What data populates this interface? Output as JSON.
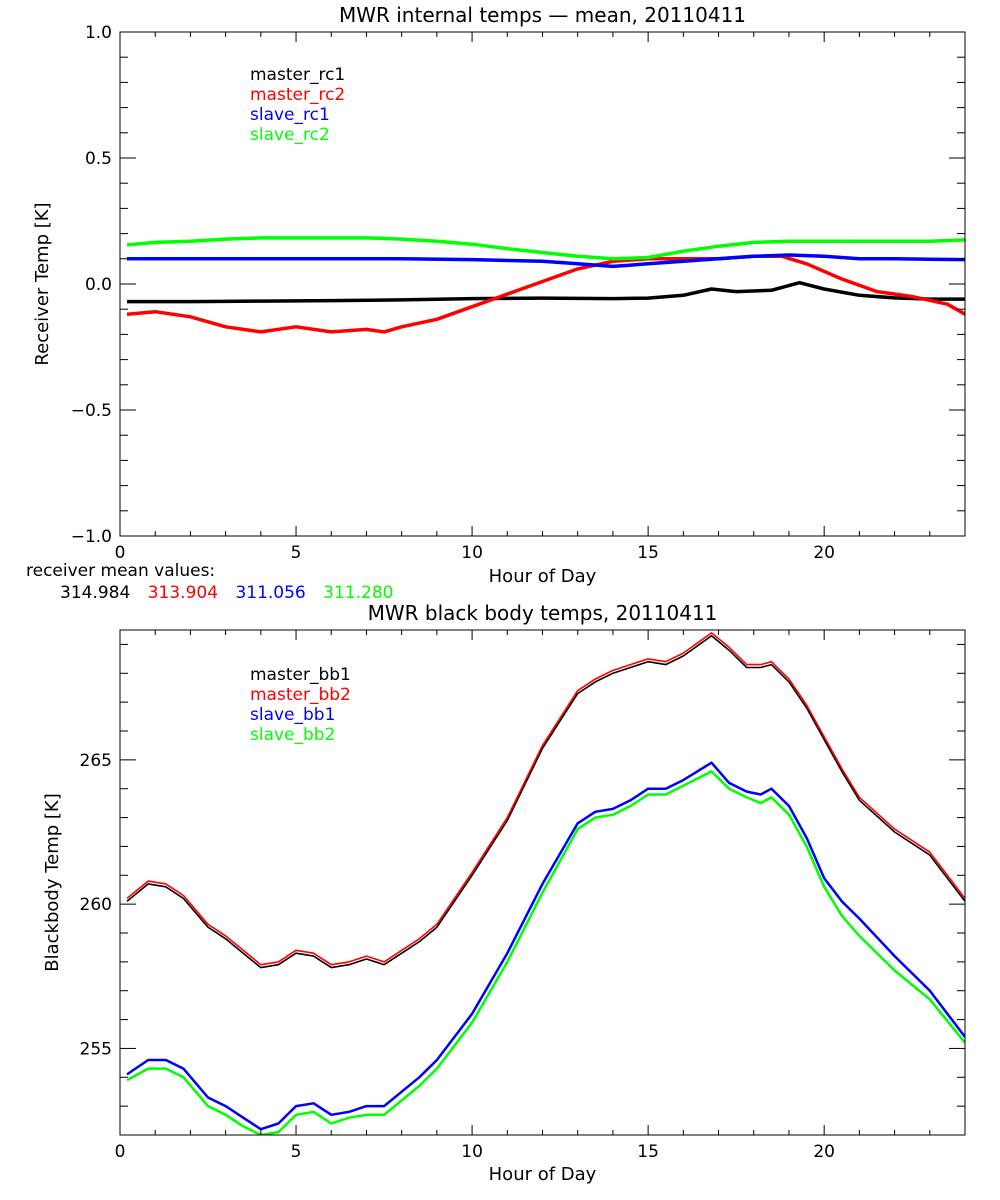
{
  "chart_data": [
    {
      "type": "line",
      "title": "MWR internal temps — mean, 20110411",
      "xlabel": "Hour of Day",
      "ylabel": "Receiver Temp [K]",
      "xlim": [
        0,
        24
      ],
      "ylim": [
        -1.0,
        1.0
      ],
      "xticks": [
        0,
        5,
        10,
        15,
        20
      ],
      "yticks": [
        -1.0,
        -0.5,
        0.0,
        0.5,
        1.0
      ],
      "ytick_labels": [
        "−1.0",
        "−0.5",
        "0.0",
        "0.5",
        "1.0"
      ],
      "grid": false,
      "legend": "upper-left",
      "series": [
        {
          "name": "master_rc1",
          "color": "#000000",
          "x": [
            0.2,
            2,
            4,
            6,
            8,
            10,
            12,
            14,
            15,
            16,
            16.8,
            17.5,
            18.5,
            19.3,
            20,
            21,
            22,
            23,
            24
          ],
          "y": [
            -0.07,
            -0.07,
            -0.068,
            -0.066,
            -0.063,
            -0.058,
            -0.056,
            -0.058,
            -0.056,
            -0.045,
            -0.02,
            -0.03,
            -0.025,
            0.005,
            -0.02,
            -0.045,
            -0.055,
            -0.06,
            -0.06
          ]
        },
        {
          "name": "master_rc2",
          "color": "#ff0000",
          "x": [
            0.2,
            1,
            2,
            3,
            4,
            5,
            6,
            7,
            7.5,
            8,
            9,
            10,
            11,
            12,
            13,
            14,
            15,
            16,
            17,
            18,
            18.8,
            19.5,
            20.5,
            21.5,
            22.5,
            23.5,
            24
          ],
          "y": [
            -0.12,
            -0.11,
            -0.13,
            -0.17,
            -0.19,
            -0.17,
            -0.19,
            -0.18,
            -0.19,
            -0.17,
            -0.14,
            -0.09,
            -0.04,
            0.01,
            0.06,
            0.09,
            0.1,
            0.1,
            0.1,
            0.11,
            0.11,
            0.08,
            0.02,
            -0.03,
            -0.05,
            -0.08,
            -0.12
          ]
        },
        {
          "name": "slave_rc1",
          "color": "#0000ff",
          "x": [
            0.2,
            2,
            4,
            6,
            8,
            10,
            12,
            13,
            14,
            15,
            16,
            17,
            18,
            19,
            20,
            21,
            22,
            23,
            24
          ],
          "y": [
            0.1,
            0.1,
            0.1,
            0.1,
            0.1,
            0.097,
            0.09,
            0.08,
            0.07,
            0.08,
            0.09,
            0.1,
            0.11,
            0.115,
            0.11,
            0.1,
            0.1,
            0.098,
            0.097
          ]
        },
        {
          "name": "slave_rc2",
          "color": "#00ff00",
          "x": [
            0.2,
            1,
            2,
            3,
            4,
            5,
            6,
            7,
            8,
            9,
            10,
            11,
            12,
            13,
            14,
            15,
            16,
            17,
            18,
            19,
            20,
            21,
            22,
            23,
            24
          ],
          "y": [
            0.155,
            0.165,
            0.17,
            0.178,
            0.183,
            0.183,
            0.183,
            0.183,
            0.178,
            0.17,
            0.158,
            0.14,
            0.125,
            0.11,
            0.1,
            0.105,
            0.13,
            0.15,
            0.165,
            0.17,
            0.17,
            0.17,
            0.17,
            0.17,
            0.175
          ]
        }
      ]
    },
    {
      "type": "line",
      "title": "MWR black body temps, 20110411",
      "xlabel": "Hour of Day",
      "ylabel": "Blackbody Temp [K]",
      "xlim": [
        0,
        24
      ],
      "ylim": [
        252,
        269.5
      ],
      "xticks": [
        0,
        5,
        10,
        15,
        20
      ],
      "yticks": [
        255,
        260,
        265
      ],
      "grid": false,
      "legend": "upper-left",
      "series": [
        {
          "name": "master_bb1",
          "color": "#000000",
          "x": [
            0.2,
            0.8,
            1.3,
            1.8,
            2.5,
            3,
            3.5,
            4,
            4.5,
            5,
            5.5,
            6,
            6.5,
            7,
            7.5,
            8,
            8.5,
            9,
            10,
            11,
            12,
            13,
            13.5,
            14,
            14.5,
            15,
            15.5,
            16,
            16.8,
            17.3,
            17.8,
            18.2,
            18.5,
            19,
            19.5,
            20,
            20.5,
            21,
            22,
            23,
            24
          ],
          "y": [
            260.1,
            260.7,
            260.6,
            260.2,
            259.2,
            258.8,
            258.3,
            257.8,
            257.9,
            258.3,
            258.2,
            257.8,
            257.9,
            258.1,
            257.9,
            258.3,
            258.7,
            259.2,
            261,
            262.9,
            265.4,
            267.3,
            267.7,
            268,
            268.2,
            268.4,
            268.3,
            268.6,
            269.3,
            268.8,
            268.2,
            268.2,
            268.3,
            267.7,
            266.8,
            265.7,
            264.6,
            263.6,
            262.5,
            261.7,
            260.1
          ]
        },
        {
          "name": "master_bb2",
          "color": "#ff0000",
          "x": [
            0.2,
            0.8,
            1.3,
            1.8,
            2.5,
            3,
            3.5,
            4,
            4.5,
            5,
            5.5,
            6,
            6.5,
            7,
            7.5,
            8,
            8.5,
            9,
            10,
            11,
            12,
            13,
            13.5,
            14,
            14.5,
            15,
            15.5,
            16,
            16.8,
            17.3,
            17.8,
            18.2,
            18.5,
            19,
            19.5,
            20,
            20.5,
            21,
            22,
            23,
            24
          ],
          "y": [
            260.2,
            260.8,
            260.7,
            260.3,
            259.3,
            258.9,
            258.4,
            257.9,
            258,
            258.4,
            258.3,
            257.9,
            258,
            258.2,
            258,
            258.4,
            258.8,
            259.3,
            261.1,
            263,
            265.5,
            267.4,
            267.8,
            268.1,
            268.3,
            268.5,
            268.4,
            268.7,
            269.4,
            268.9,
            268.3,
            268.3,
            268.4,
            267.8,
            266.9,
            265.8,
            264.7,
            263.7,
            262.6,
            261.8,
            260.2
          ]
        },
        {
          "name": "slave_bb1",
          "color": "#0000ff",
          "x": [
            0.2,
            0.8,
            1.3,
            1.8,
            2.5,
            3,
            3.5,
            4,
            4.5,
            5,
            5.5,
            6,
            6.5,
            7,
            7.5,
            8,
            8.5,
            9,
            10,
            11,
            12,
            13,
            13.5,
            14,
            14.5,
            15,
            15.5,
            16,
            16.8,
            17.3,
            17.8,
            18.2,
            18.5,
            19,
            19.5,
            20,
            20.5,
            21,
            22,
            23,
            24
          ],
          "y": [
            254.1,
            254.6,
            254.6,
            254.3,
            253.3,
            253,
            252.6,
            252.2,
            252.4,
            253,
            253.1,
            252.7,
            252.8,
            253,
            253,
            253.5,
            254,
            254.6,
            256.2,
            258.3,
            260.7,
            262.8,
            263.2,
            263.3,
            263.6,
            264,
            264,
            264.3,
            264.9,
            264.2,
            263.9,
            263.8,
            264,
            263.4,
            262.3,
            260.9,
            260.1,
            259.5,
            258.2,
            257,
            255.4
          ]
        },
        {
          "name": "slave_bb2",
          "color": "#00ff00",
          "x": [
            0.2,
            0.8,
            1.3,
            1.8,
            2.5,
            3,
            3.5,
            4,
            4.5,
            5,
            5.5,
            6,
            6.5,
            7,
            7.5,
            8,
            8.5,
            9,
            10,
            11,
            12,
            13,
            13.5,
            14,
            14.5,
            15,
            15.5,
            16,
            16.8,
            17.3,
            17.8,
            18.2,
            18.5,
            19,
            19.5,
            20,
            20.5,
            21,
            22,
            23,
            24
          ],
          "y": [
            253.9,
            254.3,
            254.3,
            254,
            253,
            252.7,
            252.3,
            252,
            252.1,
            252.7,
            252.8,
            252.4,
            252.6,
            252.7,
            252.7,
            253.2,
            253.7,
            254.3,
            255.9,
            258,
            260.4,
            262.6,
            263,
            263.1,
            263.4,
            263.8,
            263.8,
            264.1,
            264.6,
            264,
            263.7,
            263.5,
            263.7,
            263.1,
            262,
            260.6,
            259.6,
            258.9,
            257.7,
            256.7,
            255.2
          ]
        }
      ]
    }
  ],
  "receiver_means": {
    "label": "receiver mean values:",
    "values": [
      {
        "text": "314.984",
        "color": "#000000"
      },
      {
        "text": "313.904",
        "color": "#ff0000"
      },
      {
        "text": "311.056",
        "color": "#0000ff"
      },
      {
        "text": "311.280",
        "color": "#00ff00"
      }
    ]
  }
}
